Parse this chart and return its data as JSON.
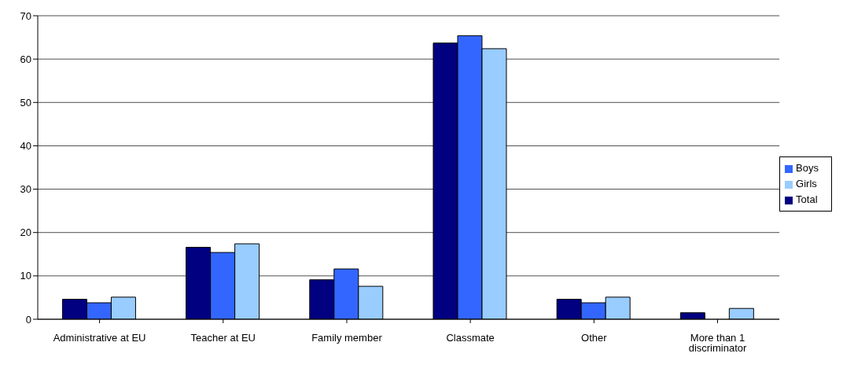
{
  "chart_data": {
    "type": "bar",
    "categories": [
      "Administrative at EU",
      "Teacher at EU",
      "Family member",
      "Classmate",
      "Other",
      "More than 1 discriminator"
    ],
    "series": [
      {
        "name": "Total",
        "color": "#000080",
        "values": [
          4.6,
          16.6,
          9.1,
          63.7,
          4.6,
          1.5
        ]
      },
      {
        "name": "Boys",
        "color": "#3366ff",
        "values": [
          3.8,
          15.4,
          11.6,
          65.4,
          3.8,
          0
        ]
      },
      {
        "name": "Girls",
        "color": "#99ccff",
        "values": [
          5.1,
          17.4,
          7.6,
          62.4,
          5.1,
          2.5
        ]
      }
    ],
    "ylim": [
      0,
      70
    ],
    "yticks": [
      0,
      10,
      20,
      30,
      40,
      50,
      60,
      70
    ],
    "grid": "y",
    "legend": "right"
  }
}
